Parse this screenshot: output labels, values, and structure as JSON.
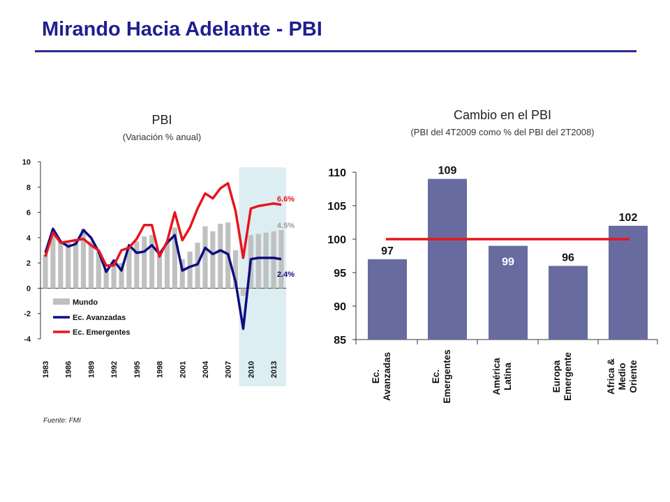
{
  "page": {
    "title": "Mirando Hacia Adelante - PBI",
    "source": "Fuente: FMI"
  },
  "chart_data": [
    {
      "type": "bar+line",
      "title": "PBI",
      "subtitle": "(Variación % anual)",
      "x": [
        1983,
        1984,
        1985,
        1986,
        1987,
        1988,
        1989,
        1990,
        1991,
        1992,
        1993,
        1994,
        1995,
        1996,
        1997,
        1998,
        1999,
        2000,
        2001,
        2002,
        2003,
        2004,
        2005,
        2006,
        2007,
        2008,
        2009,
        2010,
        2011,
        2012,
        2013,
        2014
      ],
      "xticks": [
        "1983",
        "1986",
        "1989",
        "1992",
        "1995",
        "1998",
        "2001",
        "2004",
        "2007",
        "2010",
        "2013"
      ],
      "ylim": [
        -4,
        10
      ],
      "yticks": [
        "10",
        "8",
        "6",
        "4",
        "2",
        "0",
        "-2",
        "-4"
      ],
      "projection_shaded_from": 2009,
      "series": [
        {
          "name": "Mundo",
          "type": "bar",
          "color": "#c0c0c0",
          "values": [
            2.7,
            4.5,
            3.7,
            3.6,
            3.9,
            4.7,
            3.7,
            2.9,
            1.5,
            2.0,
            2.0,
            3.3,
            3.7,
            4.1,
            4.2,
            2.8,
            3.6,
            4.8,
            2.3,
            2.9,
            3.6,
            4.9,
            4.5,
            5.1,
            5.2,
            3.0,
            -0.6,
            4.2,
            4.3,
            4.4,
            4.5,
            4.6
          ]
        },
        {
          "name": "Ec. Avanzadas",
          "type": "line",
          "color": "#0d0d80",
          "values": [
            2.8,
            4.7,
            3.7,
            3.3,
            3.5,
            4.6,
            4.0,
            2.9,
            1.3,
            2.2,
            1.4,
            3.4,
            2.8,
            2.9,
            3.4,
            2.7,
            3.6,
            4.2,
            1.4,
            1.7,
            1.9,
            3.2,
            2.7,
            3.0,
            2.7,
            0.5,
            -3.2,
            2.3,
            2.4,
            2.4,
            2.4,
            2.3
          ]
        },
        {
          "name": "Ec. Emergentes",
          "type": "line",
          "color": "#e8141b",
          "values": [
            2.5,
            4.4,
            3.6,
            3.7,
            3.8,
            3.9,
            3.4,
            3.0,
            1.8,
            1.8,
            3.0,
            3.2,
            3.9,
            5.0,
            5.0,
            2.5,
            3.7,
            6.0,
            3.8,
            4.8,
            6.3,
            7.5,
            7.1,
            7.9,
            8.3,
            6.1,
            2.4,
            6.3,
            6.5,
            6.6,
            6.7,
            6.6
          ]
        }
      ],
      "annotations": [
        {
          "text": "6.6%",
          "color": "#e8141b"
        },
        {
          "text": "4.5%",
          "color": "#999999"
        },
        {
          "text": "2.4%",
          "color": "#0d0d80"
        }
      ]
    },
    {
      "type": "bar",
      "title": "Cambio en el PBI",
      "subtitle": "(PBI del 4T2009 como % del PBI del 2T2008)",
      "categories": [
        [
          "Ec.",
          "Avanzadas"
        ],
        [
          "Ec.",
          "Emergentes"
        ],
        [
          "América",
          "Latina"
        ],
        [
          "Europa",
          "Emergente"
        ],
        [
          "Africa &",
          "Medio",
          "Oriente"
        ]
      ],
      "values": [
        97,
        109,
        99,
        96,
        102
      ],
      "value_labels": [
        "97",
        "109",
        "99",
        "96",
        "102"
      ],
      "bar_color": "#686ba0",
      "reference_line": 100,
      "reference_color": "#e8141b",
      "ylim": [
        85,
        110
      ],
      "yticks": [
        "110",
        "105",
        "100",
        "95",
        "90",
        "85"
      ]
    }
  ]
}
